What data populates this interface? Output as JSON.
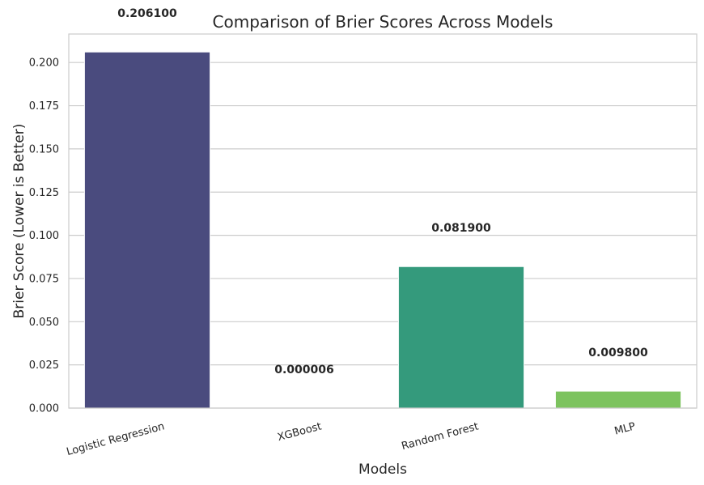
{
  "chart_data": {
    "type": "bar",
    "title": "Comparison of Brier Scores Across Models",
    "xlabel": "Models",
    "ylabel": "Brier Score (Lower is Better)",
    "categories": [
      "Logistic Regression",
      "XGBoost",
      "Random Forest",
      "MLP"
    ],
    "values": [
      0.2061,
      6e-06,
      0.0819,
      0.0098
    ],
    "data_labels": [
      "0.206100",
      "0.000006",
      "0.081900",
      "0.009800"
    ],
    "colors": [
      "#482878",
      "#26828e",
      "#35b779",
      "#6ece58"
    ],
    "bar_colors": [
      "#4a4b7e",
      "#2d8a8c",
      "#349a7c",
      "#7dc35f"
    ],
    "ylim": [
      0,
      0.2165
    ],
    "yticks": [
      0,
      0.025,
      0.05,
      0.075,
      0.1,
      0.125,
      0.15,
      0.175,
      0.2
    ],
    "ytick_labels": [
      "0.000",
      "0.025",
      "0.050",
      "0.075",
      "0.100",
      "0.125",
      "0.150",
      "0.175",
      "0.200"
    ],
    "grid": "y",
    "xtick_rotation": -15
  }
}
